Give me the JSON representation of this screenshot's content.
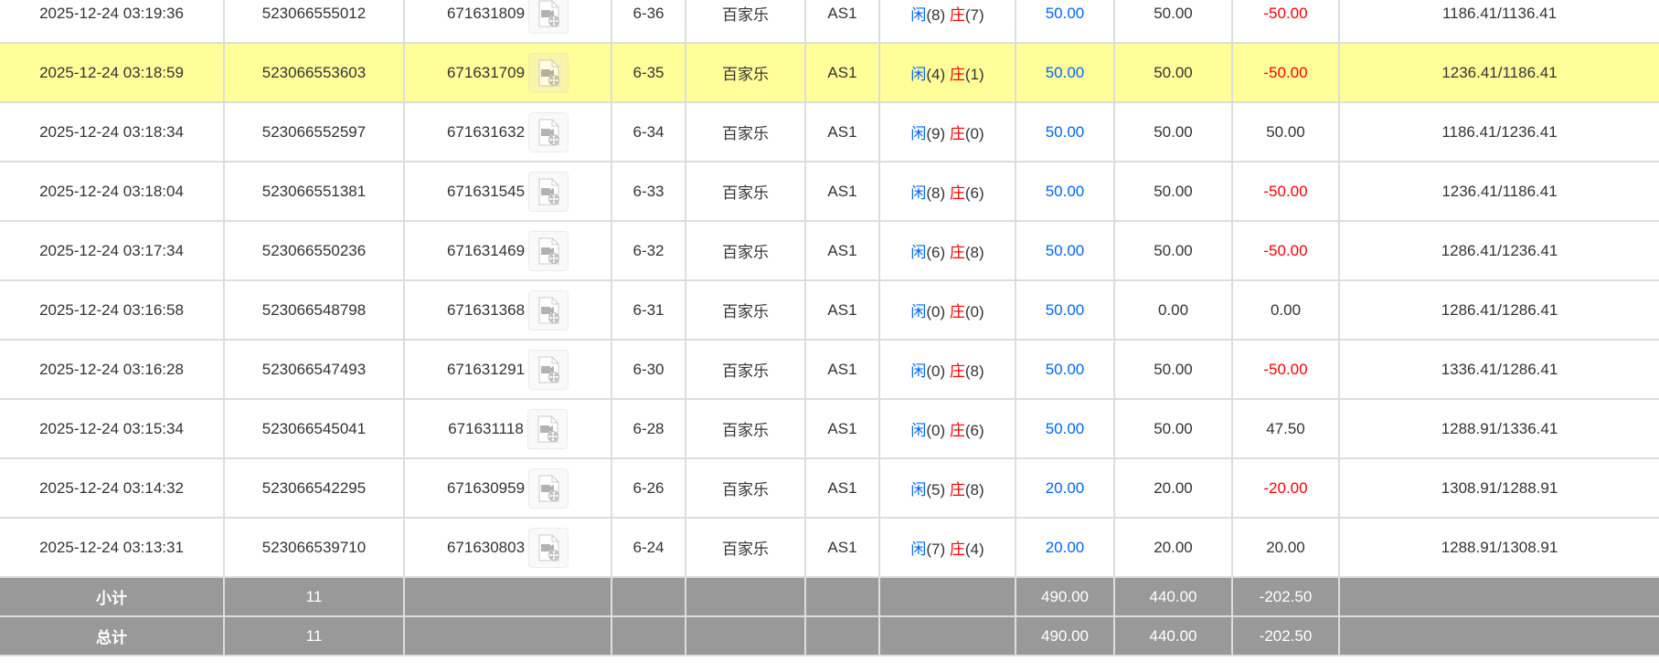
{
  "player_label": "闲",
  "banker_label": "庄",
  "rows": [
    {
      "time": "2025-12-24 03:19:36",
      "bet_id": "523066555012",
      "round_id": "671631809",
      "shoe": "6-36",
      "game": "百家乐",
      "table": "AS1",
      "player": "(8)",
      "banker": "(7)",
      "bet": "50.00",
      "valid": "50.00",
      "winloss": "-50.00",
      "balance": "1186.41/1136.41",
      "highlight": false
    },
    {
      "time": "2025-12-24 03:18:59",
      "bet_id": "523066553603",
      "round_id": "671631709",
      "shoe": "6-35",
      "game": "百家乐",
      "table": "AS1",
      "player": "(4)",
      "banker": "(1)",
      "bet": "50.00",
      "valid": "50.00",
      "winloss": "-50.00",
      "balance": "1236.41/1186.41",
      "highlight": true
    },
    {
      "time": "2025-12-24 03:18:34",
      "bet_id": "523066552597",
      "round_id": "671631632",
      "shoe": "6-34",
      "game": "百家乐",
      "table": "AS1",
      "player": "(9)",
      "banker": "(0)",
      "bet": "50.00",
      "valid": "50.00",
      "winloss": "50.00",
      "balance": "1186.41/1236.41",
      "highlight": false
    },
    {
      "time": "2025-12-24 03:18:04",
      "bet_id": "523066551381",
      "round_id": "671631545",
      "shoe": "6-33",
      "game": "百家乐",
      "table": "AS1",
      "player": "(8)",
      "banker": "(6)",
      "bet": "50.00",
      "valid": "50.00",
      "winloss": "-50.00",
      "balance": "1236.41/1186.41",
      "highlight": false
    },
    {
      "time": "2025-12-24 03:17:34",
      "bet_id": "523066550236",
      "round_id": "671631469",
      "shoe": "6-32",
      "game": "百家乐",
      "table": "AS1",
      "player": "(6)",
      "banker": "(8)",
      "bet": "50.00",
      "valid": "50.00",
      "winloss": "-50.00",
      "balance": "1286.41/1236.41",
      "highlight": false
    },
    {
      "time": "2025-12-24 03:16:58",
      "bet_id": "523066548798",
      "round_id": "671631368",
      "shoe": "6-31",
      "game": "百家乐",
      "table": "AS1",
      "player": "(0)",
      "banker": "(0)",
      "bet": "50.00",
      "valid": "0.00",
      "winloss": "0.00",
      "balance": "1286.41/1286.41",
      "highlight": false
    },
    {
      "time": "2025-12-24 03:16:28",
      "bet_id": "523066547493",
      "round_id": "671631291",
      "shoe": "6-30",
      "game": "百家乐",
      "table": "AS1",
      "player": "(0)",
      "banker": "(8)",
      "bet": "50.00",
      "valid": "50.00",
      "winloss": "-50.00",
      "balance": "1336.41/1286.41",
      "highlight": false
    },
    {
      "time": "2025-12-24 03:15:34",
      "bet_id": "523066545041",
      "round_id": "671631118",
      "shoe": "6-28",
      "game": "百家乐",
      "table": "AS1",
      "player": "(0)",
      "banker": "(6)",
      "bet": "50.00",
      "valid": "50.00",
      "winloss": "47.50",
      "balance": "1288.91/1336.41",
      "highlight": false
    },
    {
      "time": "2025-12-24 03:14:32",
      "bet_id": "523066542295",
      "round_id": "671630959",
      "shoe": "6-26",
      "game": "百家乐",
      "table": "AS1",
      "player": "(5)",
      "banker": "(8)",
      "bet": "20.00",
      "valid": "20.00",
      "winloss": "-20.00",
      "balance": "1308.91/1288.91",
      "highlight": false
    },
    {
      "time": "2025-12-24 03:13:31",
      "bet_id": "523066539710",
      "round_id": "671630803",
      "shoe": "6-24",
      "game": "百家乐",
      "table": "AS1",
      "player": "(7)",
      "banker": "(4)",
      "bet": "20.00",
      "valid": "20.00",
      "winloss": "20.00",
      "balance": "1288.91/1308.91",
      "highlight": false
    }
  ],
  "summary": [
    {
      "label": "小计",
      "count": "11",
      "bet": "490.00",
      "valid": "440.00",
      "winloss": "-202.50"
    },
    {
      "label": "总计",
      "count": "11",
      "bet": "490.00",
      "valid": "440.00",
      "winloss": "-202.50"
    }
  ],
  "icons": {
    "replay": "video-replay-icon"
  },
  "colors": {
    "highlight": "#fffe99",
    "player": "#0066ff",
    "banker": "#ff0000",
    "negative": "#ff0000",
    "summary_bg": "#999999"
  }
}
